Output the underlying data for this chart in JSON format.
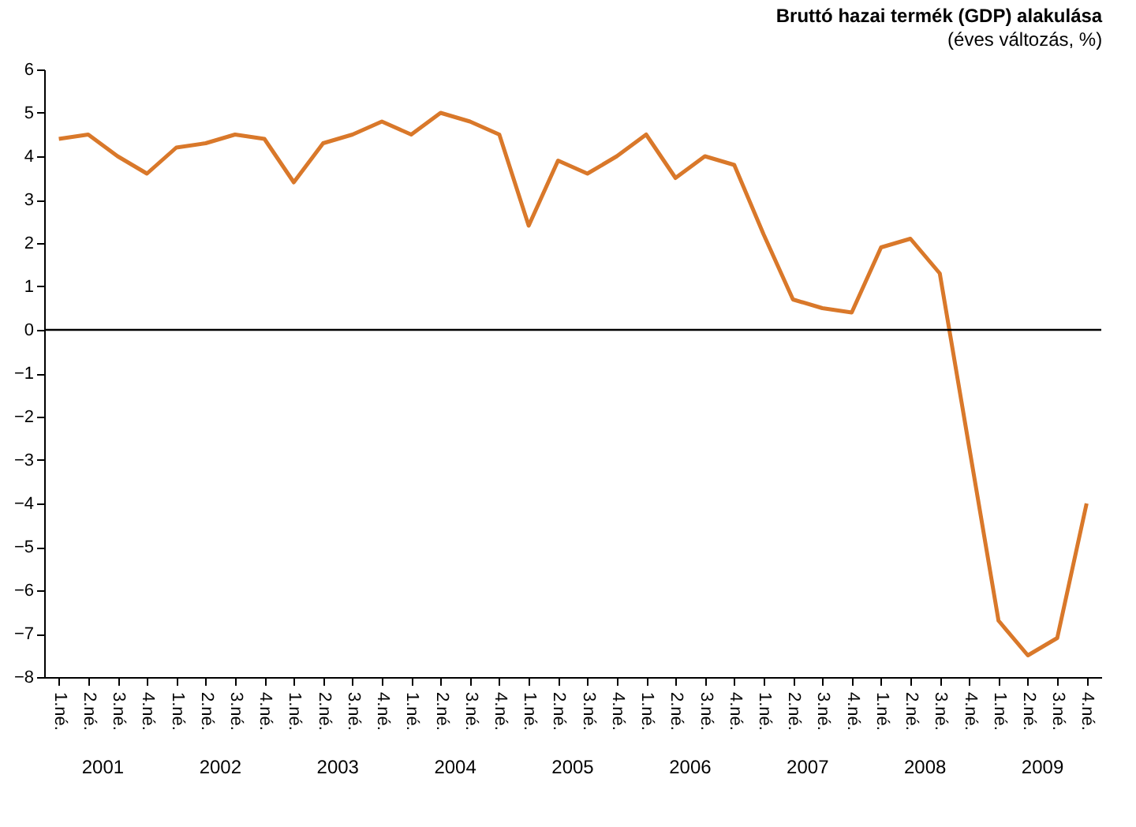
{
  "chart_data": {
    "type": "line",
    "title": "Bruttó hazai termék (GDP) alakulása",
    "subtitle": "(éves változás, %)",
    "categories": [
      "1.né.",
      "2.né.",
      "3.né.",
      "4.né.",
      "1.né.",
      "2.né.",
      "3.né.",
      "4.né.",
      "1.né.",
      "2.né.",
      "3.né.",
      "4.né.",
      "1.né.",
      "2.né.",
      "3.né.",
      "4.né.",
      "1.né.",
      "2.né.",
      "3.né.",
      "4.né.",
      "1.né.",
      "2.né.",
      "3.né.",
      "4.né.",
      "1.né.",
      "2.né.",
      "3.né.",
      "4.né.",
      "1.né.",
      "2.né.",
      "3.né.",
      "4.né.",
      "1.né.",
      "2.né.",
      "3.né.",
      "4.né."
    ],
    "annotations": [
      "2001",
      "2002",
      "2003",
      "2004",
      "2005",
      "2006",
      "2007",
      "2008",
      "2009"
    ],
    "series": [
      {
        "color": "#d9782a",
        "values": [
          4.4,
          4.5,
          4.0,
          3.6,
          4.2,
          4.3,
          4.5,
          4.4,
          3.4,
          4.3,
          4.5,
          4.8,
          4.5,
          5.0,
          4.8,
          4.5,
          2.4,
          3.9,
          3.6,
          4.0,
          4.5,
          3.5,
          4.0,
          3.8,
          2.2,
          0.7,
          0.5,
          0.4,
          1.9,
          2.1,
          1.3,
          -2.7,
          -6.7,
          -7.5,
          -7.1,
          -4.0
        ]
      }
    ],
    "ylim": [
      -8,
      6
    ],
    "yticks": [
      -8,
      -7,
      -6,
      -5,
      -4,
      -3,
      -2,
      -1,
      0,
      1,
      2,
      3,
      4,
      5,
      6
    ],
    "ref_lines": [
      {
        "axis": "y",
        "value": 0,
        "color": "#000000"
      }
    ],
    "grid": false,
    "marker": "none",
    "line_style": "solid"
  }
}
